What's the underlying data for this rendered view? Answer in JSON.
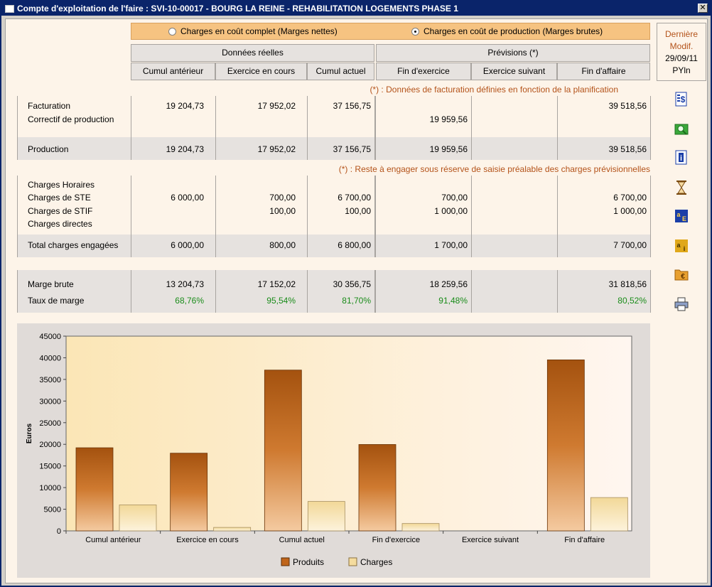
{
  "window": {
    "title": "Compte d'exploitation de l'faire : SVI-10-00017 - BOURG LA REINE - REHABILITATION LOGEMENTS PHASE 1"
  },
  "options": {
    "cout_complet": "Charges en coût complet (Marges nettes)",
    "cout_production": "Charges en coût de production (Marges brutes)",
    "selected": "cout_production"
  },
  "headers": {
    "reelles": "Données réelles",
    "previsions": "Prévisions (*)",
    "columns": [
      "Cumul antérieur",
      "Exercice en cours",
      "Cumul actuel",
      "Fin d'exercice",
      "Exercice suivant",
      "Fin d'affaire"
    ]
  },
  "last_modif": {
    "label1": "Dernière",
    "label2": "Modif.",
    "date": "29/09/11",
    "user": "PYln"
  },
  "notes": {
    "facturation": "(*) : Données de facturation définies en fonction de la planification",
    "charges": "(*) : Reste à engager sous réserve de saisie préalable des charges prévisionnelles"
  },
  "rows": {
    "facturation": {
      "label": "Facturation",
      "values": [
        "19 204,73",
        "17 952,02",
        "37 156,75",
        "",
        "",
        "39 518,56"
      ]
    },
    "correctif": {
      "label": "Correctif de production",
      "values": [
        "",
        "",
        "",
        "19 959,56",
        "",
        ""
      ]
    },
    "production": {
      "label": "Production",
      "values": [
        "19 204,73",
        "17 952,02",
        "37 156,75",
        "19 959,56",
        "",
        "39 518,56"
      ]
    },
    "charges_horaires": {
      "label": "Charges Horaires",
      "values": [
        "",
        "",
        "",
        "",
        "",
        ""
      ]
    },
    "charges_ste": {
      "label": "Charges de STE",
      "values": [
        "6 000,00",
        "700,00",
        "6 700,00",
        "700,00",
        "",
        "6 700,00"
      ]
    },
    "charges_stif": {
      "label": "Charges de STIF",
      "values": [
        "",
        "100,00",
        "100,00",
        "1 000,00",
        "",
        "1 000,00"
      ]
    },
    "charges_directes": {
      "label": "Charges directes",
      "values": [
        "",
        "",
        "",
        "",
        "",
        ""
      ]
    },
    "total_charges": {
      "label": "Total charges engagées",
      "values": [
        "6 000,00",
        "800,00",
        "6 800,00",
        "1 700,00",
        "",
        "7 700,00"
      ]
    },
    "marge_brute": {
      "label": "Marge brute",
      "values": [
        "13 204,73",
        "17 152,02",
        "30 356,75",
        "18 259,56",
        "",
        "31 818,56"
      ]
    },
    "taux_marge": {
      "label": "Taux de marge",
      "values": [
        "68,76%",
        "95,54%",
        "81,70%",
        "91,48%",
        "",
        "80,52%"
      ]
    }
  },
  "side_icons": [
    "dollar-sheet-icon",
    "search-folder-icon",
    "info-icon",
    "hourglass-icon",
    "sort-ae-icon",
    "info-sheet-icon",
    "euro-folder-icon",
    "printer-icon"
  ],
  "colors": {
    "produits": "#c0651a",
    "charges": "#f5dc9e",
    "accent": "#b4531a",
    "green": "#1a8c1a"
  },
  "chart_data": {
    "type": "bar",
    "categories": [
      "Cumul antérieur",
      "Exercice en cours",
      "Cumul actuel",
      "Fin d'exercice",
      "Exercice suivant",
      "Fin d'affaire"
    ],
    "series": [
      {
        "name": "Produits",
        "values": [
          19204.73,
          17952.02,
          37156.75,
          19959.56,
          0,
          39518.56
        ]
      },
      {
        "name": "Charges",
        "values": [
          6000,
          800,
          6800,
          1700,
          0,
          7700
        ]
      }
    ],
    "ylabel": "Euros",
    "ylim": [
      0,
      45000
    ],
    "yticks": [
      0,
      5000,
      10000,
      15000,
      20000,
      25000,
      30000,
      35000,
      40000,
      45000
    ],
    "legend": "bottom"
  }
}
